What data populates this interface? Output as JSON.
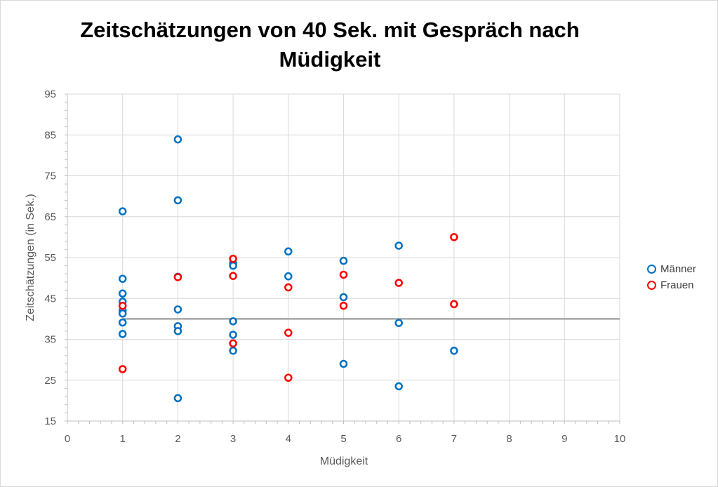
{
  "chart_data": {
    "type": "scatter",
    "title": "Zeitschätzungen von 40 Sek. mit Gespräch nach Müdigkeit",
    "xlabel": "Müdigkeit",
    "ylabel": "Zeitschätzungen (in Sek.)",
    "xlim": [
      0,
      10
    ],
    "ylim": [
      15,
      95
    ],
    "x_ticks": [
      "0",
      "1",
      "2",
      "3",
      "4",
      "5",
      "6",
      "7",
      "8",
      "9",
      "10"
    ],
    "y_ticks": [
      "15",
      "25",
      "35",
      "45",
      "55",
      "65",
      "75",
      "85",
      "95"
    ],
    "grid": true,
    "legend_position": "right",
    "reference_line": {
      "y": 40,
      "color": "#a6a6a6"
    },
    "series": [
      {
        "name": "Männer",
        "color": "#0070c0",
        "points": [
          [
            1,
            66.3
          ],
          [
            1,
            49.8
          ],
          [
            1,
            46.2
          ],
          [
            1,
            44.2
          ],
          [
            1,
            42.0
          ],
          [
            1,
            41.3
          ],
          [
            1,
            39.1
          ],
          [
            1,
            36.3
          ],
          [
            2,
            83.9
          ],
          [
            2,
            69.0
          ],
          [
            2,
            50.3
          ],
          [
            2,
            42.3
          ],
          [
            2,
            38.2
          ],
          [
            2,
            37.0
          ],
          [
            2,
            20.6
          ],
          [
            3,
            53.6
          ],
          [
            3,
            53.0
          ],
          [
            3,
            39.4
          ],
          [
            3,
            36.1
          ],
          [
            3,
            32.2
          ],
          [
            4,
            56.5
          ],
          [
            4,
            50.4
          ],
          [
            5,
            54.2
          ],
          [
            5,
            45.3
          ],
          [
            5,
            29.0
          ],
          [
            6,
            57.9
          ],
          [
            6,
            39.0
          ],
          [
            6,
            23.5
          ],
          [
            7,
            32.2
          ]
        ]
      },
      {
        "name": "Frauen",
        "color": "#ff0000",
        "points": [
          [
            1,
            43.2
          ],
          [
            1,
            27.7
          ],
          [
            2,
            50.2
          ],
          [
            3,
            54.7
          ],
          [
            3,
            50.5
          ],
          [
            3,
            34.0
          ],
          [
            4,
            47.7
          ],
          [
            4,
            36.6
          ],
          [
            4,
            25.6
          ],
          [
            5,
            50.8
          ],
          [
            5,
            43.2
          ],
          [
            6,
            48.8
          ],
          [
            7,
            60.0
          ],
          [
            7,
            43.6
          ]
        ]
      }
    ]
  }
}
